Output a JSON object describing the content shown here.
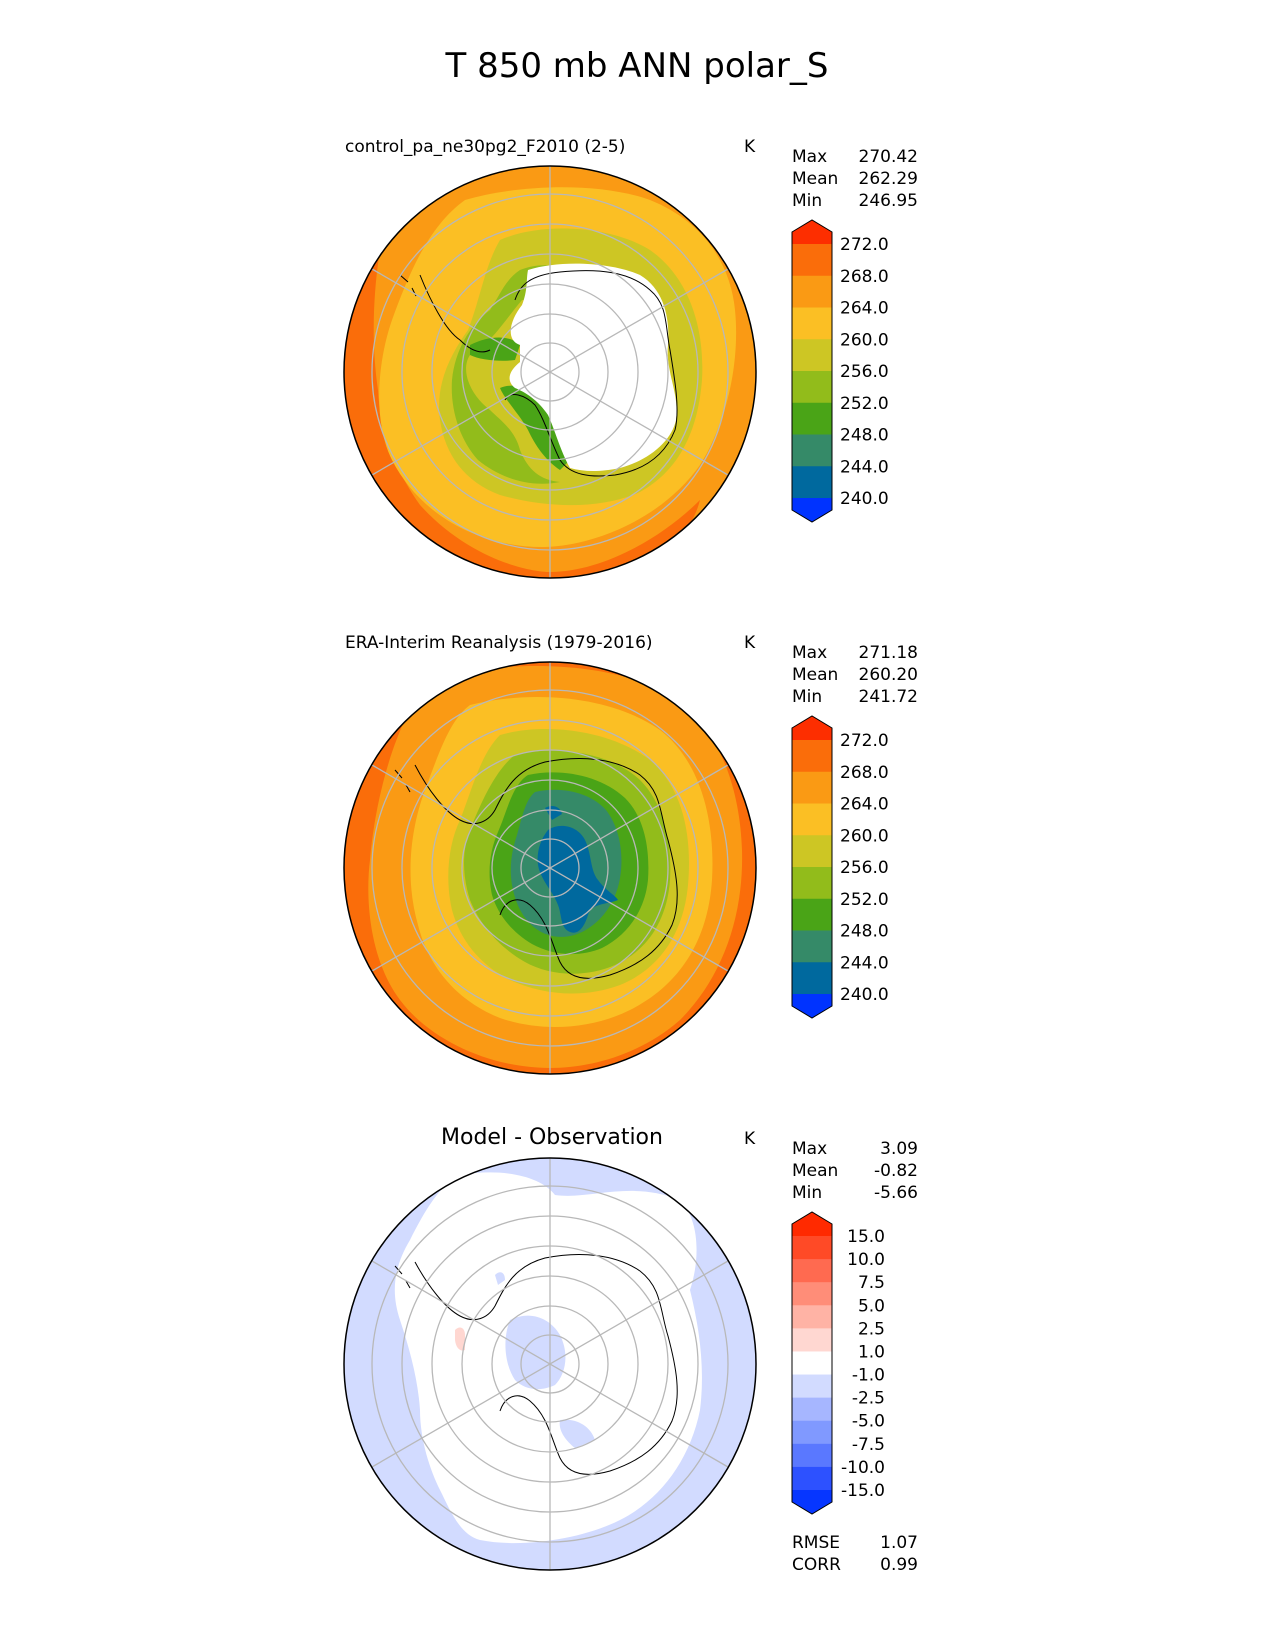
{
  "figure": {
    "title": "T 850 mb ANN polar_S"
  },
  "colors": {
    "abs_levels": [
      "#0033ff",
      "#00699e",
      "#358a68",
      "#4aa417",
      "#92bc1b",
      "#cdc624",
      "#fbbf24",
      "#fa9a14",
      "#fa6d0a",
      "#fd2e00"
    ],
    "diff_levels": [
      "#0636ff",
      "#2d51ff",
      "#5a78ff",
      "#8099ff",
      "#a6b6ff",
      "#d2dbff",
      "#ffffff",
      "#ffd7d1",
      "#ffb3a5",
      "#ff8d78",
      "#ff6a50",
      "#ff4a26",
      "#ff2a00"
    ],
    "grid": "#b8b8b8",
    "coast": "#000000"
  },
  "panels": [
    {
      "id": "test",
      "name": "control_pa_ne30pg2_F2010 (2-5)",
      "units": "K",
      "stats": [
        {
          "label": "Max",
          "value": "270.42"
        },
        {
          "label": "Mean",
          "value": "262.29"
        },
        {
          "label": "Min",
          "value": "246.95"
        }
      ],
      "colorbar_ticks": [
        "272.0",
        "268.0",
        "264.0",
        "260.0",
        "256.0",
        "252.0",
        "248.0",
        "244.0",
        "240.0"
      ]
    },
    {
      "id": "ref",
      "name": "ERA-Interim Reanalysis (1979-2016)",
      "units": "K",
      "stats": [
        {
          "label": "Max",
          "value": "271.18"
        },
        {
          "label": "Mean",
          "value": "260.20"
        },
        {
          "label": "Min",
          "value": "241.72"
        }
      ],
      "colorbar_ticks": [
        "272.0",
        "268.0",
        "264.0",
        "260.0",
        "256.0",
        "252.0",
        "248.0",
        "244.0",
        "240.0"
      ]
    },
    {
      "id": "diff",
      "name": "Model - Observation",
      "units": "K",
      "stats": [
        {
          "label": "Max",
          "value": "3.09"
        },
        {
          "label": "Mean",
          "value": "-0.82"
        },
        {
          "label": "Min",
          "value": "-5.66"
        }
      ],
      "colorbar_ticks": [
        "15.0",
        "10.0",
        "7.5",
        "5.0",
        "2.5",
        "1.0",
        "-1.0",
        "-2.5",
        "-5.0",
        "-7.5",
        "-10.0",
        "-15.0"
      ],
      "metrics": [
        {
          "label": "RMSE",
          "value": "1.07"
        },
        {
          "label": "CORR",
          "value": "0.99"
        }
      ]
    }
  ],
  "chart_data": [
    {
      "type": "heatmap",
      "title": "control_pa_ne30pg2_F2010 (2-5)",
      "projection": "south polar stereographic",
      "units": "K",
      "levels": [
        240,
        244,
        248,
        252,
        256,
        260,
        264,
        268,
        272
      ],
      "max": 270.42,
      "mean": 262.29,
      "min": 246.95
    },
    {
      "type": "heatmap",
      "title": "ERA-Interim Reanalysis (1979-2016)",
      "projection": "south polar stereographic",
      "units": "K",
      "levels": [
        240,
        244,
        248,
        252,
        256,
        260,
        264,
        268,
        272
      ],
      "max": 271.18,
      "mean": 260.2,
      "min": 241.72
    },
    {
      "type": "heatmap",
      "title": "Model - Observation",
      "projection": "south polar stereographic",
      "units": "K",
      "levels": [
        -15,
        -10,
        -7.5,
        -5,
        -2.5,
        -1,
        1,
        2.5,
        5,
        7.5,
        10,
        15
      ],
      "max": 3.09,
      "mean": -0.82,
      "min": -5.66,
      "rmse": 1.07,
      "corr": 0.99
    }
  ]
}
